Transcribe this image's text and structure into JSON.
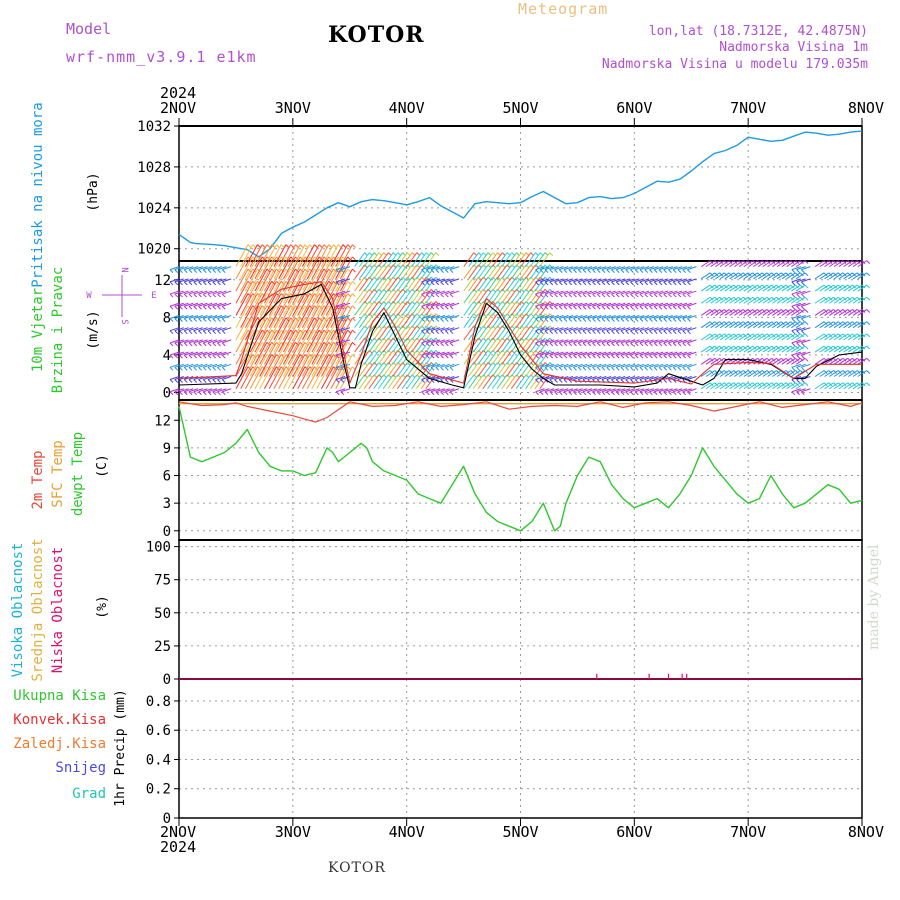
{
  "header": {
    "model_label": "Model",
    "model_run": "wrf-nmm_v3.9.1  e1km",
    "title": "KOTOR",
    "meteogram_label": "Meteogram",
    "lonlat": "lon,lat (18.7312E, 42.4875N)",
    "elevation": "Nadmorska Visina 1m",
    "model_elevation": "Nadmorska Visina u modelu 179.035m"
  },
  "footer": {
    "title": "KOTOR",
    "watermark": "made by Angel"
  },
  "time_axis": {
    "year": "2024",
    "ticks": [
      "2NOV",
      "3NOV",
      "4NOV",
      "5NOV",
      "6NOV",
      "7NOV",
      "8NOV"
    ]
  },
  "panels": {
    "pressure": {
      "label": "Pritisak na nivou mora",
      "unit": "(hPa)",
      "ticks": [
        "1020",
        "1024",
        "1028",
        "1032"
      ]
    },
    "wind": {
      "label_1": "10m Vjetar",
      "label_2": "Brzina i Pravac",
      "unit": "(m/s)",
      "ticks": [
        "0",
        "4",
        "8",
        "12"
      ],
      "compass": {
        "w": "W",
        "e": "E",
        "n": "N",
        "s": "S"
      }
    },
    "temperature": {
      "label_1": "2m Temp",
      "label_2": "SFC Temp",
      "label_3": "dewpt Temp",
      "unit": "(C)",
      "ticks": [
        "0",
        "3",
        "6",
        "9",
        "12"
      ]
    },
    "cloud": {
      "label_1": "Visoka Oblacnost",
      "label_2": "Srednja Oblacnost",
      "label_3": "Niska Oblacnost",
      "unit": "(%)",
      "ticks": [
        "0",
        "25",
        "50",
        "75",
        "100"
      ]
    },
    "precip": {
      "legend": [
        "Ukupna Kisa",
        "Konvek.Kisa",
        "Zaledj.Kisa",
        "Snijeg",
        "Grad"
      ],
      "unit": "1hr Precip (mm)",
      "ticks": [
        "0",
        "0.2",
        "0.4",
        "0.6",
        "0.8"
      ]
    }
  },
  "colors": {
    "pressure": "#1e9be0",
    "wind_speed": "#000000",
    "wind_gust": "#e03030",
    "temp_2m": "#e84a3a",
    "temp_sfc": "#e8a030",
    "dewpoint": "#2ec82e",
    "high_cloud": "#1eb0d8",
    "mid_cloud": "#e0b040",
    "low_cloud": "#e0106e",
    "precip_total": "#2ec82e",
    "precip_conv": "#e83030",
    "precip_frz": "#f07a30",
    "snow": "#4a4ae0",
    "hail": "#20c8b0",
    "label_purple": "#b04fd0"
  },
  "chart_data": [
    {
      "type": "line",
      "title": "Pritisak na nivou mora",
      "ylabel": "(hPa)",
      "ylim": [
        1018.8,
        1032
      ],
      "x_unit": "days since 2NOV 00",
      "series": [
        {
          "x": [
            0,
            0.1,
            0.15,
            0.3,
            0.4,
            0.5,
            0.6,
            0.7,
            0.8,
            0.9,
            1.0,
            1.1,
            1.2,
            1.3,
            1.4,
            1.5,
            1.6,
            1.7,
            1.8,
            1.9,
            2.0,
            2.1,
            2.2,
            2.3,
            2.4,
            2.5,
            2.6,
            2.7,
            2.8,
            2.9,
            3.0,
            3.1,
            3.2,
            3.3,
            3.4,
            3.5,
            3.6,
            3.7,
            3.8,
            3.9,
            4.0,
            4.1,
            4.2,
            4.3,
            4.4,
            4.5,
            4.6,
            4.7,
            4.8,
            4.9,
            5.0,
            5.1,
            5.2,
            5.3,
            5.4,
            5.5,
            5.6,
            5.7,
            5.8,
            5.9,
            6.0
          ],
          "values": [
            1021.4,
            1020.6,
            1020.5,
            1020.4,
            1020.3,
            1020.1,
            1019.9,
            1019.2,
            1020.0,
            1021.5,
            1022.1,
            1022.6,
            1023.3,
            1024.0,
            1024.5,
            1024.1,
            1024.6,
            1024.8,
            1024.7,
            1024.5,
            1024.3,
            1024.6,
            1025.0,
            1024.2,
            1023.6,
            1023.0,
            1024.4,
            1024.6,
            1024.5,
            1024.4,
            1024.5,
            1025.1,
            1025.6,
            1025.0,
            1024.4,
            1024.5,
            1025.0,
            1025.1,
            1024.9,
            1025.0,
            1025.4,
            1026.0,
            1026.6,
            1026.5,
            1026.8,
            1027.6,
            1028.5,
            1029.3,
            1029.6,
            1030.1,
            1030.9,
            1030.7,
            1030.5,
            1030.6,
            1031.0,
            1031.4,
            1031.3,
            1031.1,
            1031.2,
            1031.4,
            1031.5
          ]
        }
      ]
    },
    {
      "type": "line",
      "title": "10m Vjetar Brzina i Pravac",
      "ylabel": "(m/s)",
      "ylim": [
        -0.8,
        14
      ],
      "x_unit": "days since 2NOV 00",
      "series": [
        {
          "x": [
            0,
            0.5,
            0.55,
            0.7,
            0.9,
            1.1,
            1.25,
            1.35,
            1.45,
            1.5,
            1.55,
            1.6,
            1.7,
            1.8,
            1.9,
            2.0,
            2.2,
            2.4,
            2.5,
            2.6,
            2.7,
            2.8,
            2.9,
            3.0,
            3.1,
            3.2,
            3.3,
            3.5,
            3.7,
            4.0,
            4.2,
            4.3,
            4.5,
            4.6,
            4.7,
            4.8,
            5.0,
            5.2,
            5.4,
            5.5,
            5.6,
            5.8,
            6.0
          ],
          "values": [
            0.8,
            1.0,
            2.0,
            7.5,
            10.0,
            10.5,
            11.5,
            9.0,
            3.0,
            0.5,
            0.5,
            3.0,
            6.5,
            8.5,
            6.0,
            3.5,
            1.5,
            0.8,
            0.5,
            6.0,
            9.5,
            8.5,
            6.5,
            4.0,
            2.5,
            1.5,
            0.8,
            0.8,
            0.8,
            0.6,
            1.0,
            2.0,
            1.2,
            0.8,
            1.5,
            3.5,
            3.5,
            3.0,
            1.5,
            1.5,
            2.8,
            4.0,
            4.3
          ]
        },
        {
          "x": [
            0,
            0.5,
            0.55,
            0.7,
            0.9,
            1.1,
            1.25,
            1.35,
            1.45,
            1.5,
            1.6,
            1.7,
            1.8,
            1.9,
            2.0,
            2.2,
            2.5,
            2.6,
            2.7,
            2.8,
            2.9,
            3.0,
            3.2,
            3.5,
            4.0,
            4.3,
            4.5,
            4.6,
            4.7,
            5.0,
            5.2,
            5.4,
            5.6,
            6.0
          ],
          "values": [
            1.5,
            1.8,
            3.5,
            9.5,
            11.0,
            11.5,
            11.8,
            10.0,
            4.0,
            1.0,
            4.0,
            7.5,
            9.0,
            7.0,
            4.5,
            2.0,
            1.0,
            7.0,
            10.0,
            9.0,
            7.0,
            5.0,
            2.0,
            1.2,
            1.0,
            1.5,
            0.9,
            2.0,
            3.0,
            3.2,
            3.1,
            1.5,
            3.0,
            3.0
          ]
        }
      ]
    },
    {
      "type": "line",
      "title": "2m Temp / SFC Temp / dewpt Temp",
      "ylabel": "(C)",
      "ylim": [
        -1,
        14.2
      ],
      "x_unit": "days since 2NOV 00",
      "series": [
        {
          "name": "2m Temp",
          "x": [
            0,
            0.2,
            0.4,
            0.5,
            0.6,
            0.8,
            1.0,
            1.2,
            1.3,
            1.5,
            1.7,
            1.9,
            2.1,
            2.3,
            2.5,
            2.7,
            2.9,
            3.1,
            3.3,
            3.5,
            3.7,
            3.9,
            4.1,
            4.3,
            4.5,
            4.7,
            4.9,
            5.1,
            5.3,
            5.5,
            5.7,
            5.9,
            6.0
          ],
          "values": [
            14.0,
            13.6,
            13.7,
            13.9,
            13.5,
            13.0,
            12.5,
            11.8,
            12.3,
            14.0,
            13.5,
            13.6,
            14.0,
            13.5,
            13.7,
            14.0,
            13.2,
            13.5,
            13.6,
            13.5,
            14.0,
            13.4,
            13.9,
            14.0,
            13.6,
            13.0,
            13.5,
            14.0,
            13.4,
            13.7,
            14.0,
            13.5,
            13.9
          ]
        },
        {
          "name": "SFC Temp",
          "x": [
            0,
            6.0
          ],
          "values": [
            13.8,
            13.8
          ]
        },
        {
          "name": "dewpt Temp",
          "x": [
            0,
            0.1,
            0.2,
            0.3,
            0.4,
            0.5,
            0.6,
            0.7,
            0.8,
            0.9,
            1.0,
            1.1,
            1.2,
            1.3,
            1.35,
            1.4,
            1.5,
            1.6,
            1.65,
            1.7,
            1.8,
            1.9,
            2.0,
            2.1,
            2.2,
            2.3,
            2.4,
            2.5,
            2.6,
            2.7,
            2.8,
            2.9,
            3.0,
            3.1,
            3.2,
            3.3,
            3.35,
            3.4,
            3.5,
            3.6,
            3.7,
            3.8,
            3.9,
            4.0,
            4.1,
            4.2,
            4.3,
            4.4,
            4.5,
            4.6,
            4.7,
            4.8,
            4.9,
            5.0,
            5.1,
            5.2,
            5.3,
            5.4,
            5.5,
            5.6,
            5.7,
            5.8,
            5.9,
            6.0
          ],
          "values": [
            13.5,
            8.0,
            7.5,
            8.0,
            8.5,
            9.5,
            11.0,
            8.5,
            7.0,
            6.5,
            6.5,
            6.0,
            6.3,
            9.0,
            8.5,
            7.5,
            8.5,
            9.5,
            9.0,
            7.5,
            6.5,
            6.0,
            5.5,
            4.0,
            3.5,
            3.0,
            5.0,
            7.0,
            4.0,
            2.0,
            1.0,
            0.5,
            0.0,
            1.0,
            3.0,
            0.0,
            0.5,
            3.0,
            6.0,
            8.0,
            7.5,
            5.0,
            3.5,
            2.5,
            3.0,
            3.5,
            2.5,
            4.0,
            6.0,
            9.0,
            7.0,
            5.5,
            4.0,
            3.0,
            3.5,
            6.0,
            4.0,
            2.5,
            3.0,
            4.0,
            5.0,
            4.5,
            3.0,
            3.3
          ]
        }
      ]
    },
    {
      "type": "bar",
      "title": "Visoka / Srednja / Niska Oblacnost",
      "ylabel": "(%)",
      "ylim": [
        0,
        105
      ],
      "x_unit": "days since 2NOV 00",
      "series": [
        {
          "name": "Niska Oblacnost",
          "x": [
            3.67,
            4.13,
            4.3,
            4.42,
            4.46
          ],
          "values": [
            4,
            4,
            4,
            4,
            4
          ]
        }
      ]
    },
    {
      "type": "bar",
      "title": "1hr Precip",
      "ylabel": "1hr Precip (mm)",
      "ylim": [
        0,
        0.95
      ],
      "x_unit": "days since 2NOV 00",
      "series": [
        {
          "name": "Ukupna Kisa",
          "x": [],
          "values": []
        }
      ]
    }
  ]
}
